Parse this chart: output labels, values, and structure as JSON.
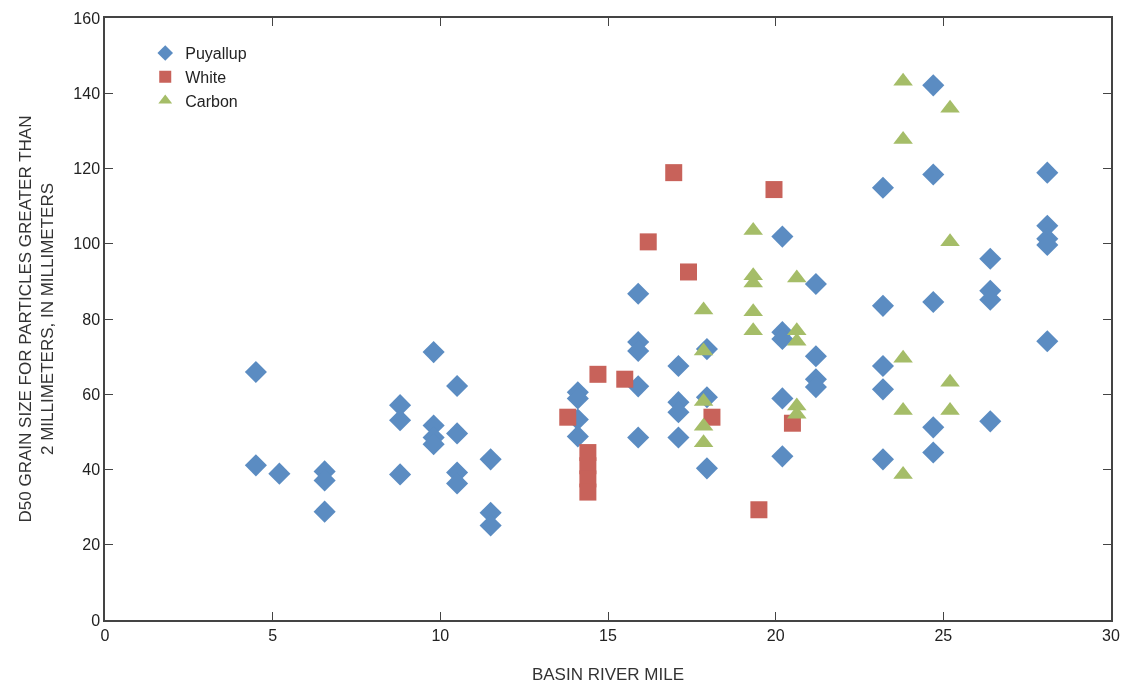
{
  "chart_data": {
    "type": "scatter",
    "xlabel": "BASIN RIVER MILE",
    "ylabel": "D50 GRAIN SIZE FOR PARTICLES GREATER THAN\n2 MILLIMETERS, IN MILLIMETERS",
    "xlim": [
      0,
      30
    ],
    "xticks": [
      0,
      5,
      10,
      15,
      20,
      25,
      30
    ],
    "ylim": [
      0,
      160
    ],
    "yticks": [
      0,
      20,
      40,
      60,
      80,
      100,
      120,
      140,
      160
    ],
    "grid": false,
    "legend": "top left",
    "series": [
      {
        "name": "Puyallup",
        "color": "#5b8cc2",
        "marker": "diamond",
        "x": [
          4.5,
          4.5,
          5.2,
          6.55,
          6.55,
          6.55,
          8.8,
          8.8,
          8.8,
          9.8,
          9.8,
          9.8,
          9.8,
          10.5,
          10.5,
          10.5,
          10.5,
          11.5,
          11.5,
          11.5,
          14.1,
          14.1,
          14.1,
          14.1,
          15.9,
          15.9,
          15.9,
          15.9,
          15.9,
          17.1,
          17.1,
          17.1,
          17.1,
          17.95,
          17.95,
          17.95,
          20.2,
          20.2,
          20.2,
          20.2,
          20.2,
          21.2,
          21.2,
          21.2,
          21.2,
          23.2,
          23.2,
          23.2,
          23.2,
          23.2,
          24.7,
          24.7,
          24.7,
          24.7,
          24.7,
          26.4,
          26.4,
          26.4,
          26.4,
          28.1,
          28.1,
          28.1,
          28.1,
          28.1
        ],
        "values": [
          65.9,
          41.1,
          38.9,
          39.5,
          37.1,
          28.8,
          57.1,
          53.1,
          38.7,
          71.2,
          51.7,
          48.5,
          46.7,
          62.2,
          49.6,
          39.2,
          36.3,
          42.7,
          28.5,
          25.1,
          60.5,
          58.9,
          53.3,
          48.8,
          86.7,
          73.9,
          71.5,
          62.1,
          48.5,
          67.5,
          57.9,
          55.2,
          48.5,
          72.0,
          59.2,
          40.3,
          101.9,
          76.5,
          74.7,
          58.9,
          43.5,
          89.3,
          70.1,
          64.0,
          61.9,
          114.9,
          83.5,
          67.5,
          61.3,
          42.7,
          142.1,
          118.4,
          84.5,
          51.2,
          44.5,
          96.0,
          87.5,
          85.1,
          52.8,
          118.9,
          104.8,
          101.3,
          99.7,
          74.1
        ]
      },
      {
        "name": "White",
        "color": "#c8625a",
        "marker": "square",
        "x": [
          16.96,
          19.95,
          16.2,
          17.4,
          14.7,
          15.5,
          13.8,
          18.1,
          20.5,
          19.5,
          14.4,
          14.4,
          14.4,
          14.4
        ],
        "values": [
          118.9,
          114.4,
          100.5,
          92.5,
          65.3,
          64.0,
          53.9,
          53.9,
          52.3,
          29.3,
          44.5,
          41.0,
          37.5,
          34.0
        ]
      },
      {
        "name": "Carbon",
        "color": "#a5bd68",
        "marker": "triangle",
        "x": [
          19.33,
          19.33,
          19.33,
          20.63,
          17.85,
          19.33,
          19.33,
          20.63,
          20.63,
          17.85,
          17.85,
          17.85,
          17.85,
          20.63,
          20.63,
          23.8,
          25.2,
          23.8,
          25.2,
          23.8,
          25.2,
          23.8,
          25.2,
          23.8
        ],
        "values": [
          103.5,
          91.5,
          89.6,
          90.9,
          82.4,
          81.9,
          76.9,
          76.9,
          74.1,
          71.5,
          58.1,
          51.5,
          47.1,
          56.9,
          54.7,
          143.2,
          136.0,
          127.7,
          100.5,
          69.6,
          63.2,
          55.7,
          55.7,
          38.7
        ]
      }
    ]
  }
}
